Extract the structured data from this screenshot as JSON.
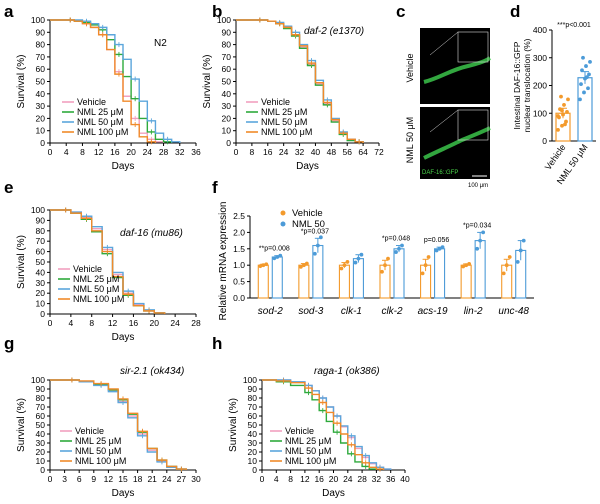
{
  "colors": {
    "vehicle": "#f2a0bf",
    "nml25": "#2eaa3c",
    "nml50": "#5ba6dc",
    "nml100": "#f08a2a",
    "bar_vehicle": "#f39a2c",
    "bar_nml": "#4c9bd8",
    "microscopy_bg": "#000000",
    "worm_green": "#3fcf4f"
  },
  "survival_panels": [
    {
      "id": "a",
      "letter": "a",
      "title": "N2",
      "title_italic": false,
      "xlabel": "Days",
      "ylabel": "Survival (%)",
      "xlim": [
        0,
        36
      ],
      "xticks": [
        0,
        4,
        8,
        12,
        16,
        20,
        24,
        28,
        32,
        36
      ],
      "ylim": [
        0,
        100
      ],
      "yticks": [
        0,
        10,
        20,
        30,
        40,
        50,
        60,
        70,
        80,
        90,
        100
      ],
      "legend": [
        "Vehicle",
        "NML 25 μM",
        "NML 50 μM",
        "NML 100 μM"
      ],
      "series": [
        {
          "name": "Vehicle",
          "key": "vehicle",
          "x": [
            0,
            4,
            6,
            8,
            10,
            12,
            14,
            16,
            18,
            20,
            22,
            24,
            26,
            28
          ],
          "y": [
            100,
            100,
            99,
            97,
            94,
            88,
            76,
            58,
            38,
            20,
            8,
            3,
            1,
            0
          ]
        },
        {
          "name": "NML 25 μM",
          "key": "nml25",
          "x": [
            0,
            4,
            6,
            8,
            10,
            12,
            14,
            16,
            18,
            20,
            22,
            24,
            26,
            28,
            30
          ],
          "y": [
            100,
            100,
            99,
            98,
            96,
            92,
            84,
            72,
            54,
            36,
            20,
            9,
            3,
            1,
            0
          ]
        },
        {
          "name": "NML 50 μM",
          "key": "nml50",
          "x": [
            0,
            4,
            6,
            8,
            10,
            12,
            14,
            16,
            18,
            20,
            22,
            24,
            26,
            28,
            30,
            32
          ],
          "y": [
            100,
            100,
            100,
            99,
            97,
            94,
            88,
            80,
            68,
            52,
            34,
            18,
            8,
            3,
            1,
            0
          ]
        },
        {
          "name": "NML 100 μM",
          "key": "nml100",
          "x": [
            0,
            4,
            6,
            8,
            10,
            12,
            14,
            16,
            18,
            20,
            22,
            24,
            26
          ],
          "y": [
            100,
            100,
            99,
            97,
            94,
            88,
            76,
            56,
            34,
            15,
            5,
            1,
            0
          ]
        }
      ]
    },
    {
      "id": "b",
      "letter": "b",
      "title": "daf-2 (e1370)",
      "title_italic": true,
      "xlabel": "Days",
      "ylabel": "Survival (%)",
      "xlim": [
        0,
        72
      ],
      "xticks": [
        0,
        8,
        16,
        24,
        32,
        40,
        48,
        56,
        64,
        72
      ],
      "ylim": [
        0,
        100
      ],
      "yticks": [
        0,
        10,
        20,
        30,
        40,
        50,
        60,
        70,
        80,
        90,
        100
      ],
      "legend": [
        "Vehicle",
        "NML 25 μM",
        "NML 50 μM",
        "NML 100 μM"
      ],
      "series": [
        {
          "name": "Vehicle",
          "key": "vehicle",
          "x": [
            0,
            8,
            16,
            20,
            24,
            28,
            32,
            36,
            40,
            44,
            48,
            52,
            56,
            60,
            64
          ],
          "y": [
            100,
            100,
            99,
            97,
            94,
            88,
            78,
            64,
            48,
            32,
            18,
            8,
            3,
            1,
            0
          ]
        },
        {
          "name": "NML 25 μM",
          "key": "nml25",
          "x": [
            0,
            8,
            16,
            20,
            24,
            28,
            32,
            36,
            40,
            44,
            48,
            52,
            56,
            60,
            64
          ],
          "y": [
            100,
            100,
            99,
            97,
            93,
            87,
            77,
            63,
            47,
            31,
            17,
            7,
            2,
            1,
            0
          ]
        },
        {
          "name": "NML 50 μM",
          "key": "nml50",
          "x": [
            0,
            8,
            16,
            20,
            24,
            28,
            32,
            36,
            40,
            44,
            48,
            52,
            56,
            60,
            64
          ],
          "y": [
            100,
            100,
            99,
            98,
            95,
            90,
            80,
            67,
            51,
            35,
            20,
            9,
            3,
            1,
            0
          ]
        },
        {
          "name": "NML 100 μM",
          "key": "nml100",
          "x": [
            0,
            8,
            16,
            20,
            24,
            28,
            32,
            36,
            40,
            44,
            48,
            52,
            56,
            60,
            64
          ],
          "y": [
            100,
            100,
            99,
            97,
            94,
            88,
            79,
            65,
            49,
            33,
            19,
            8,
            3,
            1,
            0
          ]
        }
      ]
    },
    {
      "id": "e",
      "letter": "e",
      "title": "daf-16 (mu86)",
      "title_italic": true,
      "xlabel": "Days",
      "ylabel": "Survival (%)",
      "xlim": [
        0,
        28
      ],
      "xticks": [
        0,
        4,
        8,
        12,
        16,
        20,
        24,
        28
      ],
      "ylim": [
        0,
        100
      ],
      "yticks": [
        0,
        10,
        20,
        30,
        40,
        50,
        60,
        70,
        80,
        90,
        100
      ],
      "legend": [
        "Vehicle",
        "NML 25 μM",
        "NML 50 μM",
        "NML 100 μM"
      ],
      "series": [
        {
          "name": "Vehicle",
          "key": "vehicle",
          "x": [
            0,
            2,
            4,
            6,
            8,
            10,
            12,
            14,
            16,
            18,
            20,
            22
          ],
          "y": [
            100,
            100,
            98,
            93,
            82,
            62,
            38,
            20,
            9,
            3,
            1,
            0
          ]
        },
        {
          "name": "NML 25 μM",
          "key": "nml25",
          "x": [
            0,
            2,
            4,
            6,
            8,
            10,
            12,
            14,
            16,
            18,
            20,
            22
          ],
          "y": [
            100,
            100,
            97,
            91,
            79,
            58,
            35,
            18,
            8,
            3,
            1,
            0
          ]
        },
        {
          "name": "NML 50 μM",
          "key": "nml50",
          "x": [
            0,
            2,
            4,
            6,
            8,
            10,
            12,
            14,
            16,
            18,
            20,
            22
          ],
          "y": [
            100,
            100,
            98,
            94,
            84,
            64,
            40,
            22,
            10,
            4,
            1,
            0
          ]
        },
        {
          "name": "NML 100 μM",
          "key": "nml100",
          "x": [
            0,
            2,
            4,
            6,
            8,
            10,
            12,
            14,
            16,
            18,
            20,
            22
          ],
          "y": [
            100,
            100,
            97,
            92,
            80,
            60,
            36,
            19,
            8,
            3,
            1,
            0
          ]
        }
      ]
    },
    {
      "id": "g",
      "letter": "g",
      "title": "sir-2.1 (ok434)",
      "title_italic": true,
      "xlabel": "Days",
      "ylabel": "Survival (%)",
      "xlim": [
        0,
        30
      ],
      "xticks": [
        0,
        3,
        6,
        9,
        12,
        15,
        18,
        21,
        24,
        27,
        30
      ],
      "ylim": [
        0,
        100
      ],
      "yticks": [
        0,
        10,
        20,
        30,
        40,
        50,
        60,
        70,
        80,
        90,
        100
      ],
      "legend": [
        "Vehicle",
        "NML 25 μM",
        "NML 50 μM",
        "NML 100 μM"
      ],
      "series": [
        {
          "name": "Vehicle",
          "key": "vehicle",
          "x": [
            0,
            3,
            6,
            9,
            12,
            14,
            16,
            18,
            20,
            22,
            24,
            26,
            28
          ],
          "y": [
            100,
            100,
            98,
            95,
            88,
            76,
            60,
            40,
            22,
            10,
            4,
            1,
            0
          ]
        },
        {
          "name": "NML 25 μM",
          "key": "nml25",
          "x": [
            0,
            3,
            6,
            9,
            12,
            14,
            16,
            18,
            20,
            22,
            24,
            26,
            28
          ],
          "y": [
            100,
            100,
            98,
            95,
            89,
            78,
            62,
            42,
            24,
            11,
            4,
            1,
            0
          ]
        },
        {
          "name": "NML 50 μM",
          "key": "nml50",
          "x": [
            0,
            3,
            6,
            9,
            12,
            14,
            16,
            18,
            20,
            22,
            24,
            26,
            28
          ],
          "y": [
            100,
            100,
            98,
            94,
            87,
            75,
            58,
            38,
            20,
            9,
            3,
            1,
            0
          ]
        },
        {
          "name": "NML 100 μM",
          "key": "nml100",
          "x": [
            0,
            3,
            6,
            9,
            12,
            14,
            16,
            18,
            20,
            22,
            24,
            26,
            28
          ],
          "y": [
            100,
            100,
            99,
            96,
            90,
            79,
            63,
            43,
            24,
            11,
            4,
            1,
            0
          ]
        }
      ]
    },
    {
      "id": "h",
      "letter": "h",
      "title": "raga-1 (ok386)",
      "title_italic": true,
      "xlabel": "Days",
      "ylabel": "Survival (%)",
      "xlim": [
        0,
        40
      ],
      "xticks": [
        0,
        4,
        8,
        12,
        16,
        20,
        24,
        28,
        32,
        36,
        40
      ],
      "ylim": [
        0,
        100
      ],
      "yticks": [
        0,
        10,
        20,
        30,
        40,
        50,
        60,
        70,
        80,
        90,
        100
      ],
      "legend": [
        "Vehicle",
        "NML 25 μM",
        "NML 50 μM",
        "NML 100 μM"
      ],
      "series": [
        {
          "name": "Vehicle",
          "key": "vehicle",
          "x": [
            0,
            4,
            8,
            12,
            14,
            16,
            18,
            20,
            22,
            24,
            26,
            28,
            30,
            32,
            34,
            36
          ],
          "y": [
            100,
            100,
            98,
            94,
            88,
            80,
            70,
            60,
            48,
            36,
            24,
            14,
            7,
            3,
            1,
            0
          ]
        },
        {
          "name": "NML 25 μM",
          "key": "nml25",
          "x": [
            0,
            4,
            8,
            12,
            14,
            16,
            18,
            20,
            22,
            24,
            26,
            28,
            30,
            32
          ],
          "y": [
            100,
            98,
            94,
            86,
            78,
            66,
            54,
            42,
            30,
            18,
            9,
            4,
            1,
            0
          ]
        },
        {
          "name": "NML 50 μM",
          "key": "nml50",
          "x": [
            0,
            4,
            8,
            12,
            14,
            16,
            18,
            20,
            22,
            24,
            26,
            28,
            30,
            32,
            34,
            36
          ],
          "y": [
            100,
            100,
            98,
            94,
            88,
            80,
            70,
            60,
            49,
            38,
            26,
            16,
            8,
            3,
            1,
            0
          ]
        },
        {
          "name": "NML 100 μM",
          "key": "nml100",
          "x": [
            0,
            4,
            8,
            12,
            14,
            16,
            18,
            20,
            22,
            24,
            26,
            28,
            30,
            32,
            34
          ],
          "y": [
            100,
            99,
            97,
            91,
            84,
            75,
            64,
            52,
            40,
            28,
            17,
            8,
            3,
            1,
            0
          ]
        }
      ]
    }
  ],
  "microscopy": {
    "letter": "c",
    "row_labels": [
      "Vehicle",
      "NML 50 μM"
    ],
    "channel_label": "DAF-16::GFP",
    "scale_bar_label": "100 μm"
  },
  "chart_data": [
    {
      "type": "line",
      "panel": "a",
      "title": "N2",
      "xlabel": "Days",
      "ylabel": "Survival (%)",
      "xlim": [
        0,
        36
      ],
      "ylim": [
        0,
        100
      ]
    },
    {
      "type": "bar",
      "panel": "d",
      "ylabel": "Intestinal DAF-16::GFP nuclear translocation (%)",
      "ylabel_lines": [
        "Intestinal DAF-16::GFP",
        "nuclear translocation (%)"
      ],
      "categories": [
        "Vehicle",
        "NML 50 μM"
      ],
      "values": [
        100,
        228
      ],
      "errors": [
        18,
        22
      ],
      "points": [
        [
          40,
          55,
          70,
          85,
          95,
          105,
          115,
          130,
          150,
          160,
          60,
          90,
          110
        ],
        [
          150,
          175,
          190,
          205,
          225,
          240,
          255,
          270,
          285,
          300,
          230
        ]
      ],
      "ylim": [
        0,
        400
      ],
      "yticks": [
        0,
        100,
        200,
        300,
        400
      ],
      "annotation": "***p<0.001"
    },
    {
      "type": "bar",
      "panel": "f",
      "ylabel": "Relative mRNA expression",
      "categories": [
        "sod-2",
        "sod-3",
        "clk-1",
        "clk-2",
        "acs-19",
        "lin-2",
        "unc-48"
      ],
      "series": [
        {
          "name": "Vehicle",
          "values": [
            1.0,
            1.0,
            1.0,
            1.0,
            1.0,
            1.0,
            1.0
          ],
          "errors": [
            0.03,
            0.05,
            0.08,
            0.15,
            0.18,
            0.04,
            0.18
          ],
          "points": [
            [
              0.97,
              1.0,
              1.03
            ],
            [
              0.95,
              1.0,
              1.05
            ],
            [
              0.9,
              1.0,
              1.1
            ],
            [
              0.8,
              1.0,
              1.2
            ],
            [
              0.75,
              1.0,
              1.25
            ],
            [
              0.96,
              1.0,
              1.04
            ],
            [
              0.75,
              1.0,
              1.25
            ]
          ]
        },
        {
          "name": "NML 50",
          "values": [
            1.25,
            1.6,
            1.2,
            1.5,
            1.5,
            1.75,
            1.45
          ],
          "errors": [
            0.04,
            0.22,
            0.12,
            0.1,
            0.05,
            0.25,
            0.3
          ],
          "points": [
            [
              1.21,
              1.25,
              1.29
            ],
            [
              1.35,
              1.6,
              1.85
            ],
            [
              1.08,
              1.2,
              1.32
            ],
            [
              1.4,
              1.5,
              1.6
            ],
            [
              1.45,
              1.5,
              1.55
            ],
            [
              1.5,
              1.75,
              2.0
            ],
            [
              1.1,
              1.45,
              1.75
            ]
          ]
        }
      ],
      "annotations": [
        {
          "category": "sod-2",
          "text": "**p=0.008"
        },
        {
          "category": "sod-3",
          "text": "*p=0.037"
        },
        {
          "category": "clk-2",
          "text": "*p=0.048"
        },
        {
          "category": "acs-19",
          "text": "p=0.056"
        },
        {
          "category": "lin-2",
          "text": "*p=0.034"
        }
      ],
      "legend": [
        "Vehicle",
        "NML 50"
      ],
      "ylim": [
        0,
        2.5
      ],
      "yticks": [
        0,
        0.5,
        1.0,
        1.5,
        2.0,
        2.5
      ]
    }
  ]
}
